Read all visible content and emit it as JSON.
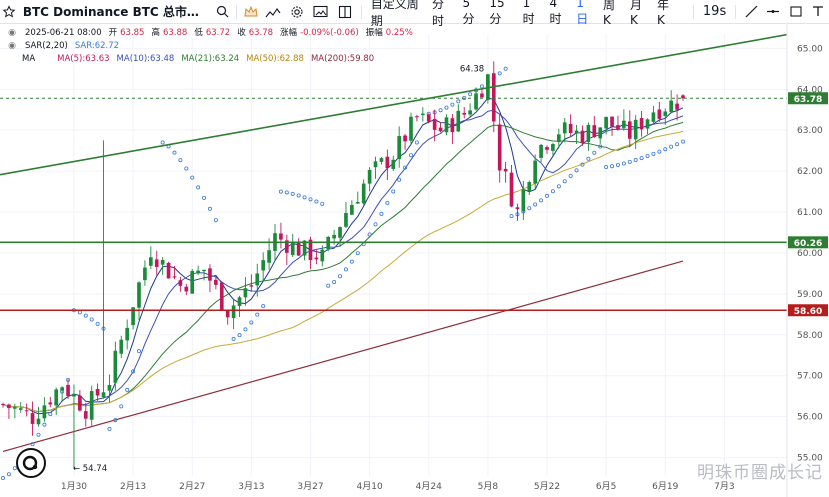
{
  "toolbar": {
    "title": "BTC Dominance BTC 总市…",
    "timeframes": [
      "自定义周期",
      "分时",
      "5分",
      "15分",
      "1时",
      "4时",
      "1日",
      "周K",
      "月K",
      "年K"
    ],
    "active_timeframe": "1日",
    "countdown": "19s"
  },
  "legend": {
    "date": "2025-06-21 08:00",
    "open_label": "开",
    "open": "63.85",
    "high_label": "高",
    "high": "63.88",
    "low_label": "低",
    "low": "63.72",
    "close_label": "收",
    "close": "63.78",
    "change_label": "涨幅",
    "change": "-0.09%(-0.06)",
    "amp_label": "振幅",
    "amp": "0.25%",
    "sar_name": "SAR(2,20)",
    "sar_value": "SAR:62.72",
    "ma_name": "MA",
    "ma5": "MA(5):63.63",
    "ma10": "MA(10):63.48",
    "ma21": "MA(21):63.24",
    "ma50": "MA(50):62.88",
    "ma200": "MA(200):59.80"
  },
  "colors": {
    "up": "#1b8a3a",
    "down": "#c2185b",
    "support": "#2e7d32",
    "resistance": "#b71c1c",
    "ma5": "#1e3a8a",
    "ma10": "#3f51b5",
    "ma21": "#2e7d32",
    "ma50": "#c8a93a",
    "ma200": "#8e2c3a",
    "sar": "#3a7bd5"
  },
  "chart_data": {
    "type": "candlestick",
    "ylim": [
      54.55,
      65.35
    ],
    "y_ticks": [
      55.0,
      56.0,
      57.0,
      58.0,
      59.0,
      60.0,
      61.0,
      62.0,
      63.0,
      64.0,
      65.0
    ],
    "x_ticks": [
      "1月30",
      "2月13",
      "2月27",
      "3月13",
      "3月27",
      "4月10",
      "4月24",
      "5月8",
      "5月22",
      "6月5",
      "6月19",
      "7月3"
    ],
    "horizontal_lines": [
      {
        "label": "63.78",
        "value": 63.78,
        "style": "dashed"
      },
      {
        "label": "60.26",
        "value": 60.26,
        "style": "solid"
      },
      {
        "label": "58.60",
        "value": 58.6,
        "style": "solid"
      }
    ],
    "annotations": [
      {
        "text": "64.38",
        "value": 64.38
      },
      {
        "text": "← 54.74",
        "value": 54.74
      }
    ],
    "trendline": {
      "points": [
        [
          -1,
          61.9
        ],
        [
          139,
          65.5
        ]
      ]
    },
    "anchors": [
      [
        0,
        56.3
      ],
      [
        5,
        56.0
      ],
      [
        10,
        56.8
      ],
      [
        14,
        56.2
      ],
      [
        18,
        56.9
      ],
      [
        22,
        58.8
      ],
      [
        25,
        60.1
      ],
      [
        30,
        59.2
      ],
      [
        34,
        59.6
      ],
      [
        38,
        58.6
      ],
      [
        42,
        59.2
      ],
      [
        46,
        60.4
      ],
      [
        50,
        60.1
      ],
      [
        54,
        59.9
      ],
      [
        58,
        61.0
      ],
      [
        62,
        61.9
      ],
      [
        66,
        62.4
      ],
      [
        70,
        63.3
      ],
      [
        74,
        63.0
      ],
      [
        78,
        63.4
      ],
      [
        82,
        64.3
      ],
      [
        84,
        62.2
      ],
      [
        87,
        61.0
      ],
      [
        90,
        62.5
      ],
      [
        94,
        63.0
      ],
      [
        98,
        62.9
      ],
      [
        102,
        63.2
      ],
      [
        106,
        62.9
      ],
      [
        110,
        63.5
      ],
      [
        114,
        63.7
      ],
      [
        115,
        63.78
      ]
    ],
    "ma200_line": [
      [
        0,
        55.15
      ],
      [
        60,
        57.6
      ],
      [
        115,
        59.8
      ]
    ],
    "sar_segments": [
      {
        "from": 0,
        "to": 11,
        "start": 54.5,
        "end": 56.9
      },
      {
        "from": 12,
        "to": 17,
        "start": 58.6,
        "end": 58.15
      },
      {
        "from": 18,
        "to": 23,
        "start": 55.7,
        "end": 57.6
      },
      {
        "from": 27,
        "to": 36,
        "start": 62.7,
        "end": 60.8
      },
      {
        "from": 39,
        "to": 44,
        "start": 57.9,
        "end": 58.7
      },
      {
        "from": 47,
        "to": 54,
        "start": 61.5,
        "end": 61.2
      },
      {
        "from": 55,
        "to": 70,
        "start": 59.2,
        "end": 62.7
      },
      {
        "from": 72,
        "to": 85,
        "start": 63.4,
        "end": 64.5
      },
      {
        "from": 86,
        "to": 101,
        "start": 60.9,
        "end": 62.6
      },
      {
        "from": 102,
        "to": 115,
        "start": 62.1,
        "end": 62.72
      }
    ]
  },
  "brand": {
    "watermark": "明珠币圈成长记"
  }
}
